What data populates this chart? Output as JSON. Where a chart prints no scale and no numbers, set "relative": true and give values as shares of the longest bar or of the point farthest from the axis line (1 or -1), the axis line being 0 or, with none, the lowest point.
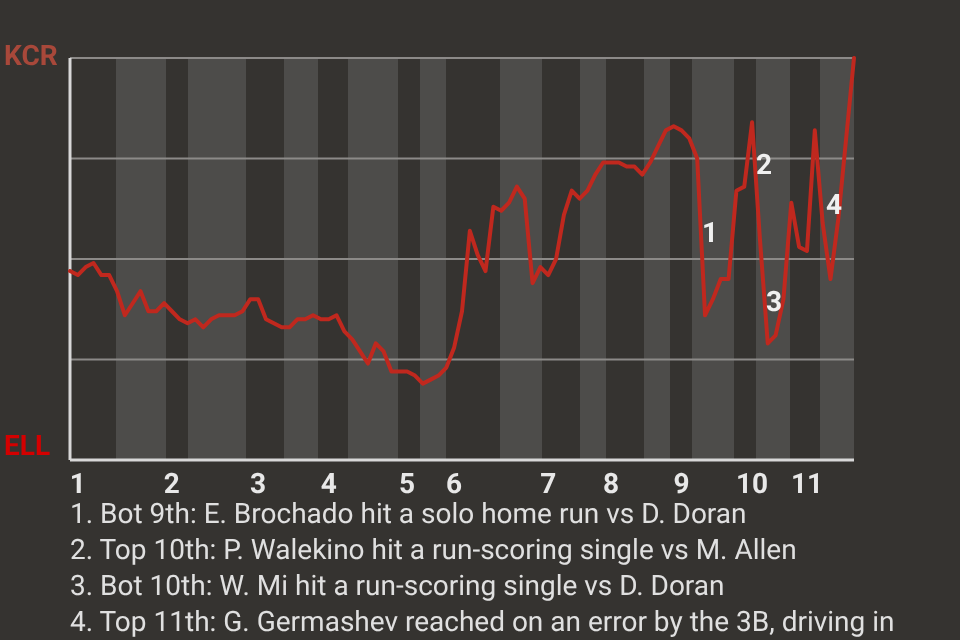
{
  "chart_data": {
    "type": "line",
    "relative": true,
    "categories": [
      null,
      "1",
      null,
      null,
      null,
      null,
      null,
      null,
      null,
      null,
      null,
      null,
      null,
      "2",
      null,
      null,
      null,
      null,
      null,
      null,
      null,
      null,
      null,
      null,
      "3",
      null,
      null,
      null,
      null,
      null,
      null,
      null,
      null,
      "4",
      null,
      null,
      null,
      null,
      null,
      null,
      null,
      null,
      null,
      "5",
      null,
      null,
      null,
      null,
      null,
      "6",
      null,
      null,
      null,
      null,
      null,
      null,
      null,
      null,
      null,
      null,
      null,
      "7",
      null,
      null,
      null,
      null,
      null,
      null,
      null,
      "8",
      null,
      null,
      null,
      null,
      null,
      null,
      null,
      null,
      "9",
      null,
      null,
      null,
      null,
      null,
      null,
      null,
      null,
      "10",
      null,
      null,
      null,
      null,
      null,
      null,
      "11",
      null,
      null,
      null,
      null,
      null,
      null
    ],
    "marker": "none",
    "line_style": "solid",
    "ref_lines": [
      {
        "axis": "y",
        "value": 0.25,
        "color": "#8c8a88"
      },
      {
        "axis": "y",
        "value": 0.5,
        "color": "#8c8a88"
      },
      {
        "axis": "y",
        "value": 0.75,
        "color": "#8c8a88"
      },
      {
        "axis": "y",
        "value": 1,
        "color": "#8c8a88"
      }
    ],
    "series": [
      {
        "color": "#c0281e",
        "values": [
          0.47,
          0.46,
          0.48,
          0.49,
          0.46,
          0.46,
          0.42,
          0.36,
          0.39,
          0.42,
          0.37,
          0.37,
          0.39,
          0.37,
          0.35,
          0.34,
          0.35,
          0.33,
          0.35,
          0.36,
          0.36,
          0.36,
          0.37,
          0.4,
          0.4,
          0.35,
          0.34,
          0.33,
          0.33,
          0.35,
          0.35,
          0.36,
          0.35,
          0.35,
          0.36,
          0.32,
          0.3,
          0.27,
          0.24,
          0.29,
          0.27,
          0.22,
          0.22,
          0.22,
          0.21,
          0.19,
          0.2,
          0.21,
          0.23,
          0.28,
          0.37,
          0.57,
          0.51,
          0.47,
          0.63,
          0.62,
          0.64,
          0.68,
          0.65,
          0.44,
          0.48,
          0.46,
          0.5,
          0.61,
          0.67,
          0.65,
          0.67,
          0.71,
          0.74,
          0.74,
          0.74,
          0.73,
          0.73,
          0.71,
          0.74,
          0.78,
          0.82,
          0.83,
          0.82,
          0.8,
          0.75,
          0.36,
          0.4,
          0.45,
          0.45,
          0.67,
          0.68,
          0.84,
          0.55,
          0.29,
          0.31,
          0.4,
          0.64,
          0.53,
          0.52,
          0.82,
          0.59,
          0.45,
          0.6,
          0.8,
          1
        ]
      }
    ],
    "annotations": [
      "KCR",
      "ELL",
      {
        "text": "1",
        "y": 0.56
      },
      {
        "text": "2",
        "y": 0.73
      },
      {
        "text": "3",
        "y": 0.39
      },
      {
        "text": "4",
        "y": 0.63
      },
      "1. Bot 9th: E. Brochado hit a solo home run vs D. Doran",
      "2. Top 10th: P. Walekino hit a run-scoring single vs M. Allen",
      "3. Bot 10th: W. Mi hit a run-scoring single vs D. Doran",
      "4. Top 11th: G. Germashev reached on an error by the 3B, driving in"
    ]
  }
}
